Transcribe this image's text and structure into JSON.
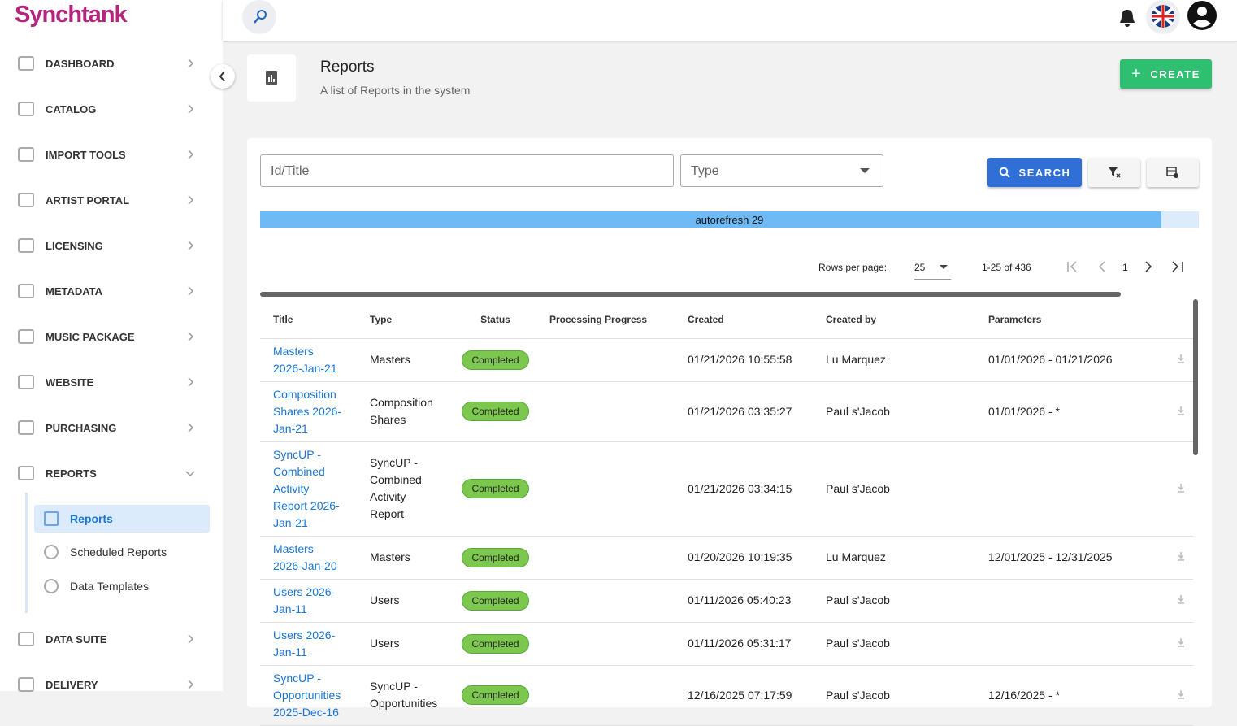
{
  "brand": "Synchtank",
  "nav": [
    "DASHBOARD",
    "CATALOG",
    "IMPORT TOOLS",
    "ARTIST PORTAL",
    "LICENSING",
    "METADATA",
    "MUSIC PACKAGE",
    "WEBSITE",
    "PURCHASING",
    "REPORTS",
    "DATA SUITE",
    "DELIVERY"
  ],
  "subnav": [
    "Reports",
    "Scheduled Reports",
    "Data Templates"
  ],
  "header": {
    "title": "Reports",
    "subtitle": "A list of Reports in the system",
    "create": "CREATE"
  },
  "filters": {
    "id_title": "Id/Title",
    "type": "Type",
    "search": "SEARCH"
  },
  "autorefresh": {
    "label": "autorefresh 29",
    "progress": 96
  },
  "pagination": {
    "rows_per_page": "Rows per page:",
    "per_page": "25",
    "range": "1-25 of 436",
    "page": "1"
  },
  "table": {
    "columns": [
      "Title",
      "Type",
      "Status",
      "Processing Progress",
      "Created",
      "Created by",
      "Parameters"
    ],
    "rows": [
      {
        "title": "Masters 2026-Jan-21",
        "type": "Masters",
        "status": "Completed",
        "created": "01/21/2026 10:55:58",
        "created_by": "Lu Marquez",
        "parameters": "01/01/2026 - 01/21/2026"
      },
      {
        "title": "Composition Shares 2026-Jan-21",
        "type": "Composition Shares",
        "status": "Completed",
        "created": "01/21/2026 03:35:27",
        "created_by": "Paul s'Jacob",
        "parameters": "01/01/2026 - *"
      },
      {
        "title": "SyncUP - Combined Activity Report 2026-Jan-21",
        "type": "SyncUP - Combined Activity Report",
        "status": "Completed",
        "created": "01/21/2026 03:34:15",
        "created_by": "Paul s'Jacob"
      },
      {
        "title": "Masters 2026-Jan-20",
        "type": "Masters",
        "status": "Completed",
        "created": "01/20/2026 10:19:35",
        "created_by": "Lu Marquez",
        "parameters": "12/01/2025 - 12/31/2025"
      },
      {
        "title": "Users 2026-Jan-11",
        "type": "Users",
        "status": "Completed",
        "created": "01/11/2026 05:40:23",
        "created_by": "Paul s'Jacob"
      },
      {
        "title": "Users 2026-Jan-11",
        "type": "Users",
        "status": "Completed",
        "created": "01/11/2026 05:31:17",
        "created_by": "Paul s'Jacob"
      },
      {
        "title": "SyncUP - Opportunities 2025-Dec-16",
        "type": "SyncUP - Opportunities",
        "status": "Completed",
        "created": "12/16/2025 07:17:59",
        "created_by": "Paul s'Jacob",
        "parameters": "12/16/2025 - *"
      }
    ]
  }
}
